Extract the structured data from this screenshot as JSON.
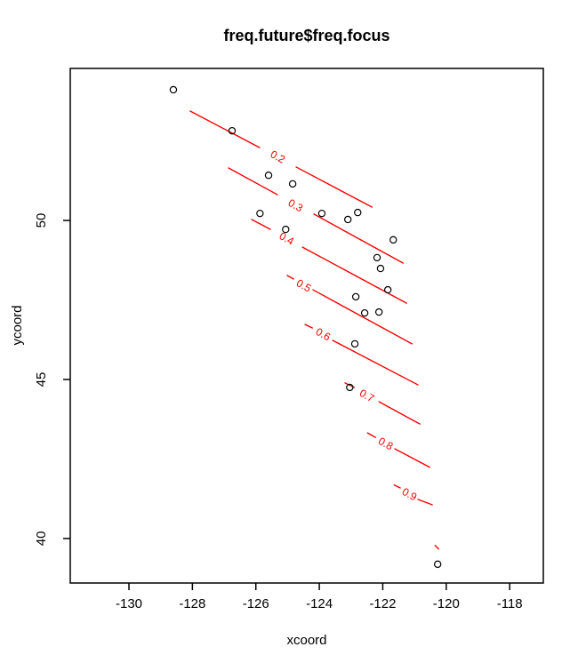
{
  "title": "freq.future$freq.focus",
  "axes": {
    "xlabel": "xcoord",
    "ylabel": "ycoord"
  },
  "colors": {
    "contour": "#ff0000",
    "points": "#000000",
    "box": "#000000",
    "background": "#ffffff"
  },
  "chart_data": {
    "type": "scatter",
    "title": "freq.future$freq.focus",
    "xlabel": "xcoord",
    "ylabel": "ycoord",
    "xlim": [
      -131.85,
      -116.94
    ],
    "ylim": [
      38.6,
      54.78
    ],
    "xticks": [
      -130,
      -128,
      -126,
      -124,
      -122,
      -120,
      -118
    ],
    "yticks": [
      40,
      45,
      50
    ],
    "grid": false,
    "legend": "none",
    "points": [
      [
        -128.6,
        54.11
      ],
      [
        -126.75,
        52.82
      ],
      [
        -125.6,
        51.42
      ],
      [
        -124.84,
        51.15
      ],
      [
        -125.87,
        50.22
      ],
      [
        -123.92,
        50.22
      ],
      [
        -123.1,
        50.03
      ],
      [
        -125.06,
        49.72
      ],
      [
        -122.79,
        50.25
      ],
      [
        -121.67,
        49.39
      ],
      [
        -122.18,
        48.83
      ],
      [
        -122.07,
        48.49
      ],
      [
        -121.84,
        47.82
      ],
      [
        -122.85,
        47.6
      ],
      [
        -122.57,
        47.09
      ],
      [
        -122.12,
        47.12
      ],
      [
        -122.88,
        46.12
      ],
      [
        -123.04,
        44.75
      ],
      [
        -120.27,
        39.19
      ]
    ],
    "contours": [
      {
        "level": "0.2",
        "label_at": [
          -125.32,
          51.98
        ],
        "segments": [
          [
            [
              -128.07,
              53.44
            ],
            [
              -125.88,
              52.29
            ]
          ],
          [
            [
              -124.73,
              51.68
            ],
            [
              -122.34,
              50.42
            ]
          ]
        ]
      },
      {
        "level": "0.3",
        "label_at": [
          -124.76,
          50.45
        ],
        "segments": [
          [
            [
              -126.86,
              51.65
            ],
            [
              -125.32,
              50.81
            ]
          ],
          [
            [
              -124.17,
              50.2
            ],
            [
              -121.36,
              48.66
            ]
          ]
        ]
      },
      {
        "level": "0.4",
        "label_at": [
          -125.04,
          49.41
        ],
        "segments": [
          [
            [
              -126.13,
              50.03
            ],
            [
              -125.54,
              49.72
            ]
          ],
          [
            [
              -124.53,
              49.16
            ],
            [
              -121.25,
              47.4
            ]
          ]
        ]
      },
      {
        "level": "0.5",
        "label_at": [
          -124.5,
          47.93
        ],
        "segments": [
          [
            [
              -125.01,
              48.27
            ],
            [
              -124.81,
              48.16
            ]
          ],
          [
            [
              -124.2,
              47.82
            ],
            [
              -121.08,
              46.12
            ]
          ]
        ]
      },
      {
        "level": "0.6",
        "label_at": [
          -123.89,
          46.4
        ],
        "segments": [
          [
            [
              -124.45,
              46.73
            ],
            [
              -124.22,
              46.62
            ]
          ],
          [
            [
              -123.58,
              46.23
            ],
            [
              -120.89,
              44.83
            ]
          ]
        ]
      },
      {
        "level": "0.7",
        "label_at": [
          -122.51,
          44.47
        ],
        "segments": [
          [
            [
              -123.19,
              44.89
            ],
            [
              -122.9,
              44.75
            ]
          ],
          [
            [
              -122.12,
              44.3
            ],
            [
              -120.83,
              43.6
            ]
          ]
        ]
      },
      {
        "level": "0.8",
        "label_at": [
          -121.92,
          42.96
        ],
        "segments": [
          [
            [
              -122.48,
              43.32
            ],
            [
              -122.23,
              43.18
            ]
          ],
          [
            [
              -121.62,
              42.82
            ],
            [
              -120.52,
              42.24
            ]
          ]
        ]
      },
      {
        "level": "0.9",
        "label_at": [
          -121.17,
          41.37
        ],
        "segments": [
          [
            [
              -121.64,
              41.68
            ],
            [
              -121.45,
              41.59
            ]
          ],
          [
            [
              -120.89,
              41.23
            ],
            [
              -120.44,
              41.06
            ]
          ]
        ]
      },
      {
        "level": "",
        "label_at": null,
        "segments": [
          [
            [
              -120.35,
              39.78
            ],
            [
              -120.24,
              39.67
            ]
          ]
        ]
      }
    ],
    "label_rotation_deg": 29
  }
}
